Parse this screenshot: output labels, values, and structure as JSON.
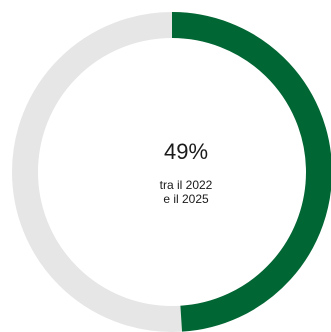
{
  "chart_data": {
    "type": "pie",
    "style": "donut",
    "values": [
      49,
      51
    ],
    "unit": "%",
    "colors": {
      "value": "#006633",
      "remainder": "#e6e6e6"
    }
  },
  "center_label": {
    "value": "49%",
    "caption_line1": "tra il 2022",
    "caption_line2": "e il 2025"
  }
}
